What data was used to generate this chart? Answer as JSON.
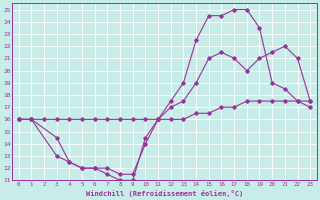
{
  "xlabel": "Windchill (Refroidissement éolien,°C)",
  "background_color": "#c8ece8",
  "line_color": "#993399",
  "grid_color": "#ffffff",
  "xlim": [
    -0.5,
    23.5
  ],
  "ylim": [
    11,
    25.5
  ],
  "xticks": [
    0,
    1,
    2,
    3,
    4,
    5,
    6,
    7,
    8,
    9,
    10,
    11,
    12,
    13,
    14,
    15,
    16,
    17,
    18,
    19,
    20,
    21,
    22,
    23
  ],
  "yticks": [
    11,
    12,
    13,
    14,
    15,
    16,
    17,
    18,
    19,
    20,
    21,
    22,
    23,
    24,
    25
  ],
  "line1_x": [
    0,
    1,
    3,
    4,
    5,
    6,
    7,
    8,
    9,
    10,
    11,
    12,
    13,
    14,
    15,
    16,
    17,
    18,
    19,
    20,
    21,
    22,
    23
  ],
  "line1_y": [
    16,
    16,
    13,
    12.5,
    12,
    12,
    11.5,
    11,
    11,
    14.5,
    16,
    17.5,
    19,
    22.5,
    24.5,
    24.5,
    25,
    25,
    23.5,
    19,
    18.5,
    17.5,
    17
  ],
  "line2_x": [
    0,
    1,
    3,
    4,
    5,
    6,
    7,
    8,
    9,
    10,
    11,
    12,
    13,
    14,
    15,
    16,
    17,
    18,
    19,
    20,
    21,
    22,
    23
  ],
  "line2_y": [
    16,
    16,
    14.5,
    12.5,
    12,
    12,
    12,
    11.5,
    11.5,
    14,
    16,
    17,
    17.5,
    19,
    21,
    21.5,
    21,
    20,
    21,
    21.5,
    22,
    21,
    17.5
  ],
  "line3_x": [
    0,
    1,
    2,
    3,
    4,
    5,
    6,
    7,
    8,
    9,
    10,
    11,
    12,
    13,
    14,
    15,
    16,
    17,
    18,
    19,
    20,
    21,
    22,
    23
  ],
  "line3_y": [
    16,
    16,
    16,
    16,
    16,
    16,
    16,
    16,
    16,
    16,
    16,
    16,
    16,
    16,
    16.5,
    16.5,
    17,
    17,
    17.5,
    17.5,
    17.5,
    17.5,
    17.5,
    17.5
  ]
}
